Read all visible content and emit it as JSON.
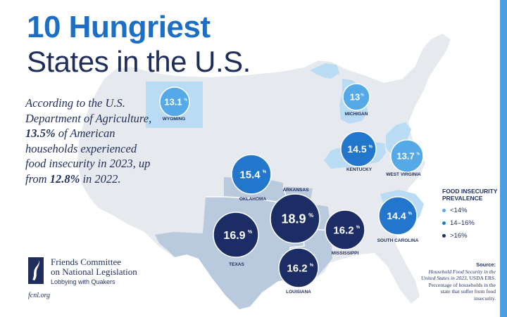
{
  "title": {
    "line1": "10 Hungriest",
    "line2": "States in the U.S."
  },
  "intro": {
    "t1": "According to the U.S. Department of Agriculture, ",
    "national_rate": "13.5%",
    "t2": " of American households experienced food insecurity in 2023, up from ",
    "prior_rate": "12.8%",
    "t3": " in 2022."
  },
  "organization": {
    "line1": "Friends Committee",
    "line2": "on National Legislation",
    "tagline": "Lobbying with Quakers",
    "website": "fcnl.org"
  },
  "legend": {
    "title_line1": "FOOD INSECURITY",
    "title_line2": "PREVALENCE",
    "items": [
      {
        "label": "<14%",
        "color": "#55a9e6"
      },
      {
        "label": "14–16%",
        "color": "#2277cc"
      },
      {
        "label": ">16%",
        "color": "#1c2d66"
      }
    ]
  },
  "source": {
    "heading": "Source:",
    "italic": "Household Food Security in the United States in 2023,",
    "rest": " USDA ERS. Percentage of households in the state that suffer from food insecurity."
  },
  "colors": {
    "low": "#55a9e6",
    "mid": "#2277cc",
    "high": "#1c2d66",
    "land": "#e6e9ee",
    "highlight_light": "#b9dbf3",
    "highlight_region": "#b9c9de",
    "stripe": "#4a9fe0"
  },
  "states": [
    {
      "id": "wyoming",
      "name": "WYOMING",
      "value": "13.1",
      "unit": "%",
      "category": "low"
    },
    {
      "id": "michigan",
      "name": "MICHIGAN",
      "value": "13",
      "unit": "%",
      "category": "low"
    },
    {
      "id": "kentucky",
      "name": "KENTUCKY",
      "value": "14.5",
      "unit": "%",
      "category": "mid"
    },
    {
      "id": "west-virginia",
      "name": "WEST VIRGINIA",
      "value": "13.7",
      "unit": "%",
      "category": "low"
    },
    {
      "id": "oklahoma",
      "name": "OKLAHOMA",
      "value": "15.4",
      "unit": "%",
      "category": "mid"
    },
    {
      "id": "arkansas",
      "name": "ARKANSAS",
      "value": "18.9",
      "unit": "%",
      "category": "high"
    },
    {
      "id": "texas",
      "name": "TEXAS",
      "value": "16.9",
      "unit": "%",
      "category": "high"
    },
    {
      "id": "mississippi",
      "name": "MISSISSIPPI",
      "value": "16.2",
      "unit": "%",
      "category": "high"
    },
    {
      "id": "louisiana",
      "name": "LOUISIANA",
      "value": "16.2",
      "unit": "%",
      "category": "high"
    },
    {
      "id": "south-carolina",
      "name": "SOUTH CAROLINA",
      "value": "14.4",
      "unit": "%",
      "category": "mid"
    }
  ]
}
